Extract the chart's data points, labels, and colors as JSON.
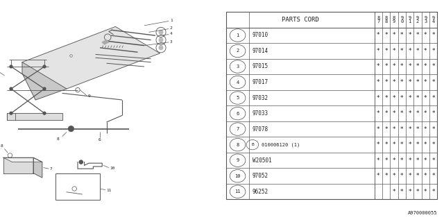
{
  "bg_color": "#ffffff",
  "table_header": "PARTS CORD",
  "year_cols": [
    "8\n7",
    "8\n8",
    "8\n9",
    "9\n0",
    "9\n1",
    "9\n2",
    "9\n3",
    "9\n4"
  ],
  "parts": [
    {
      "num": 1,
      "code": "97010",
      "stars": [
        1,
        1,
        1,
        1,
        1,
        1,
        1,
        1
      ]
    },
    {
      "num": 2,
      "code": "97014",
      "stars": [
        1,
        1,
        1,
        1,
        1,
        1,
        1,
        1
      ]
    },
    {
      "num": 3,
      "code": "97015",
      "stars": [
        1,
        1,
        1,
        1,
        1,
        1,
        1,
        1
      ]
    },
    {
      "num": 4,
      "code": "97017",
      "stars": [
        1,
        1,
        1,
        1,
        1,
        1,
        1,
        1
      ]
    },
    {
      "num": 5,
      "code": "97032",
      "stars": [
        1,
        1,
        1,
        1,
        1,
        1,
        1,
        1
      ]
    },
    {
      "num": 6,
      "code": "97033",
      "stars": [
        1,
        1,
        1,
        1,
        1,
        1,
        1,
        1
      ]
    },
    {
      "num": 7,
      "code": "97078",
      "stars": [
        1,
        1,
        1,
        1,
        1,
        1,
        1,
        1
      ]
    },
    {
      "num": 8,
      "code": "010006120 (1)",
      "stars": [
        1,
        1,
        1,
        1,
        1,
        1,
        1,
        1
      ],
      "prefix_b": true
    },
    {
      "num": 9,
      "code": "W20501",
      "stars": [
        1,
        1,
        1,
        1,
        1,
        1,
        1,
        1
      ]
    },
    {
      "num": 10,
      "code": "97052",
      "stars": [
        1,
        1,
        1,
        1,
        1,
        1,
        1,
        1
      ]
    },
    {
      "num": 11,
      "code": "96252",
      "stars": [
        0,
        0,
        1,
        1,
        1,
        1,
        1,
        1
      ]
    }
  ],
  "footer": "A970000055",
  "lc": "#555555",
  "tc": "#222222"
}
